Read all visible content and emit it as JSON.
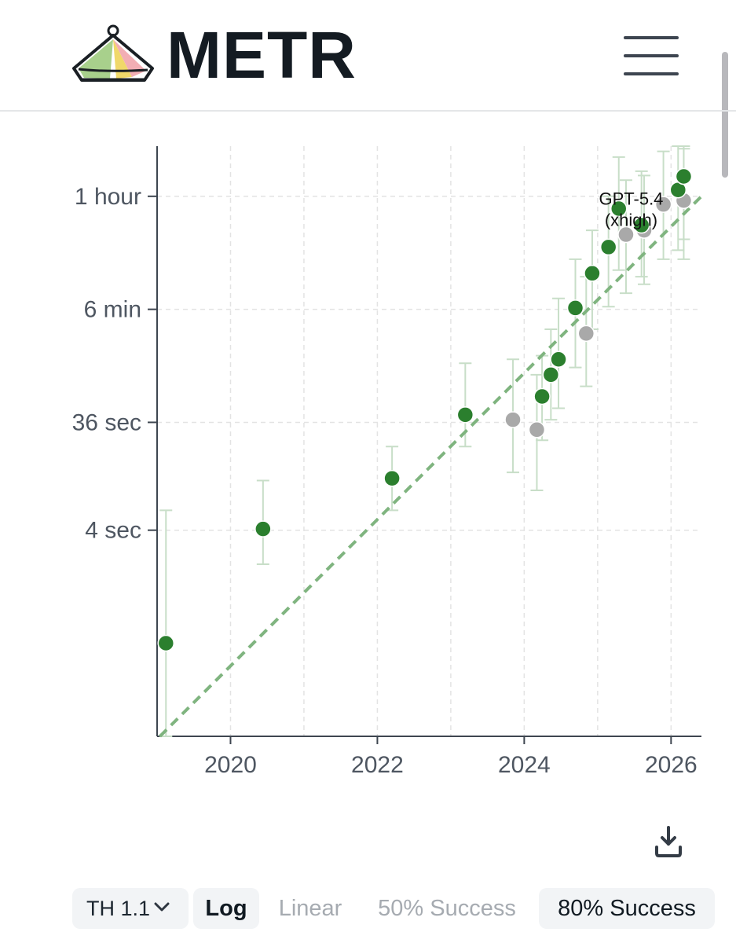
{
  "header": {
    "brand": "METR",
    "menu_icon": "hamburger-menu-icon"
  },
  "chart_data": {
    "type": "scatter",
    "title": "",
    "xlabel": "",
    "ylabel": "",
    "y_scale": "log",
    "x_tick_labels": [
      "2020",
      "2022",
      "2024",
      "2026"
    ],
    "y_tick_labels": [
      "4 sec",
      "36 sec",
      "6 min",
      "1 hour"
    ],
    "y_tick_values_sec": [
      4,
      36,
      360,
      3600
    ],
    "xlim": [
      "2019-01-01",
      "2026-06-01"
    ],
    "ylim_sec": [
      0.06,
      10000
    ],
    "grid": true,
    "colors": {
      "frontier": "#2b7f2e",
      "other": "#a9a9a9",
      "trend": "#7fb47f",
      "errorbar": "#c8dec8"
    },
    "trend": {
      "start": [
        "2019-01-15",
        0.06
      ],
      "end": [
        "2026-06-01",
        3600
      ]
    },
    "series": [
      {
        "role": "frontier",
        "points": [
          {
            "x": "2019-02-14",
            "y_sec": 0.4,
            "ci_sec": [
              0.06,
              6
            ]
          },
          {
            "x": "2020-06-11",
            "y_sec": 4.1,
            "ci_sec": [
              2,
              11
            ]
          },
          {
            "x": "2022-03-15",
            "y_sec": 11.5,
            "ci_sec": [
              6,
              22
            ]
          },
          {
            "x": "2023-03-14",
            "y_sec": 42,
            "ci_sec": [
              22,
              120
            ]
          },
          {
            "x": "2024-03-30",
            "y_sec": 61,
            "ci_sec": [
              25,
              140
            ]
          },
          {
            "x": "2024-05-13",
            "y_sec": 95,
            "ci_sec": [
              38,
              240
            ]
          },
          {
            "x": "2024-06-20",
            "y_sec": 130,
            "ci_sec": [
              48,
              450
            ]
          },
          {
            "x": "2024-09-12",
            "y_sec": 370,
            "ci_sec": [
              110,
              1000
            ]
          },
          {
            "x": "2024-12-05",
            "y_sec": 750,
            "ci_sec": [
              240,
              1800
            ]
          },
          {
            "x": "2025-02-24",
            "y_sec": 1280,
            "ci_sec": [
              380,
              3600
            ]
          },
          {
            "x": "2025-04-16",
            "y_sec": 2800,
            "ci_sec": [
              800,
              8000
            ]
          },
          {
            "x": "2025-08-07",
            "y_sec": 2000,
            "ci_sec": [
              700,
              6000
            ]
          },
          {
            "x": "2026-02-05",
            "y_sec": 4100,
            "ci_sec": [
              1200,
              11000
            ]
          },
          {
            "x": "2026-03-05",
            "y_sec": 5400,
            "ci_sec": [
              1500,
              12000
            ]
          }
        ]
      },
      {
        "role": "other",
        "points": [
          {
            "x": "2023-11-06",
            "y_sec": 38,
            "ci_sec": [
              13,
              130
            ]
          },
          {
            "x": "2024-03-04",
            "y_sec": 31,
            "ci_sec": [
              9,
              95
            ]
          },
          {
            "x": "2024-11-05",
            "y_sec": 220,
            "ci_sec": [
              75,
              700
            ]
          },
          {
            "x": "2025-05-22",
            "y_sec": 1650,
            "ci_sec": [
              500,
              5000
            ]
          },
          {
            "x": "2025-08-20",
            "y_sec": 1800,
            "ci_sec": [
              600,
              5500
            ]
          },
          {
            "x": "2025-11-24",
            "y_sec": 3050,
            "ci_sec": [
              1000,
              9000
            ]
          },
          {
            "x": "2026-03-05",
            "y_sec": 3300,
            "ci_sec": [
              1000,
              9500
            ]
          }
        ]
      }
    ],
    "annotations": [
      {
        "text": "GPT-5.4",
        "x": "2026-03-05"
      },
      {
        "text": "(xhigh)",
        "x": "2026-03-05"
      }
    ]
  },
  "download_icon": "download-icon",
  "controls": {
    "task_set": "TH 1.1",
    "task_set_icon": "chevron-down-icon",
    "log": "Log",
    "linear": "Linear",
    "success_50": "50% Success",
    "success_80": "80% Success"
  }
}
